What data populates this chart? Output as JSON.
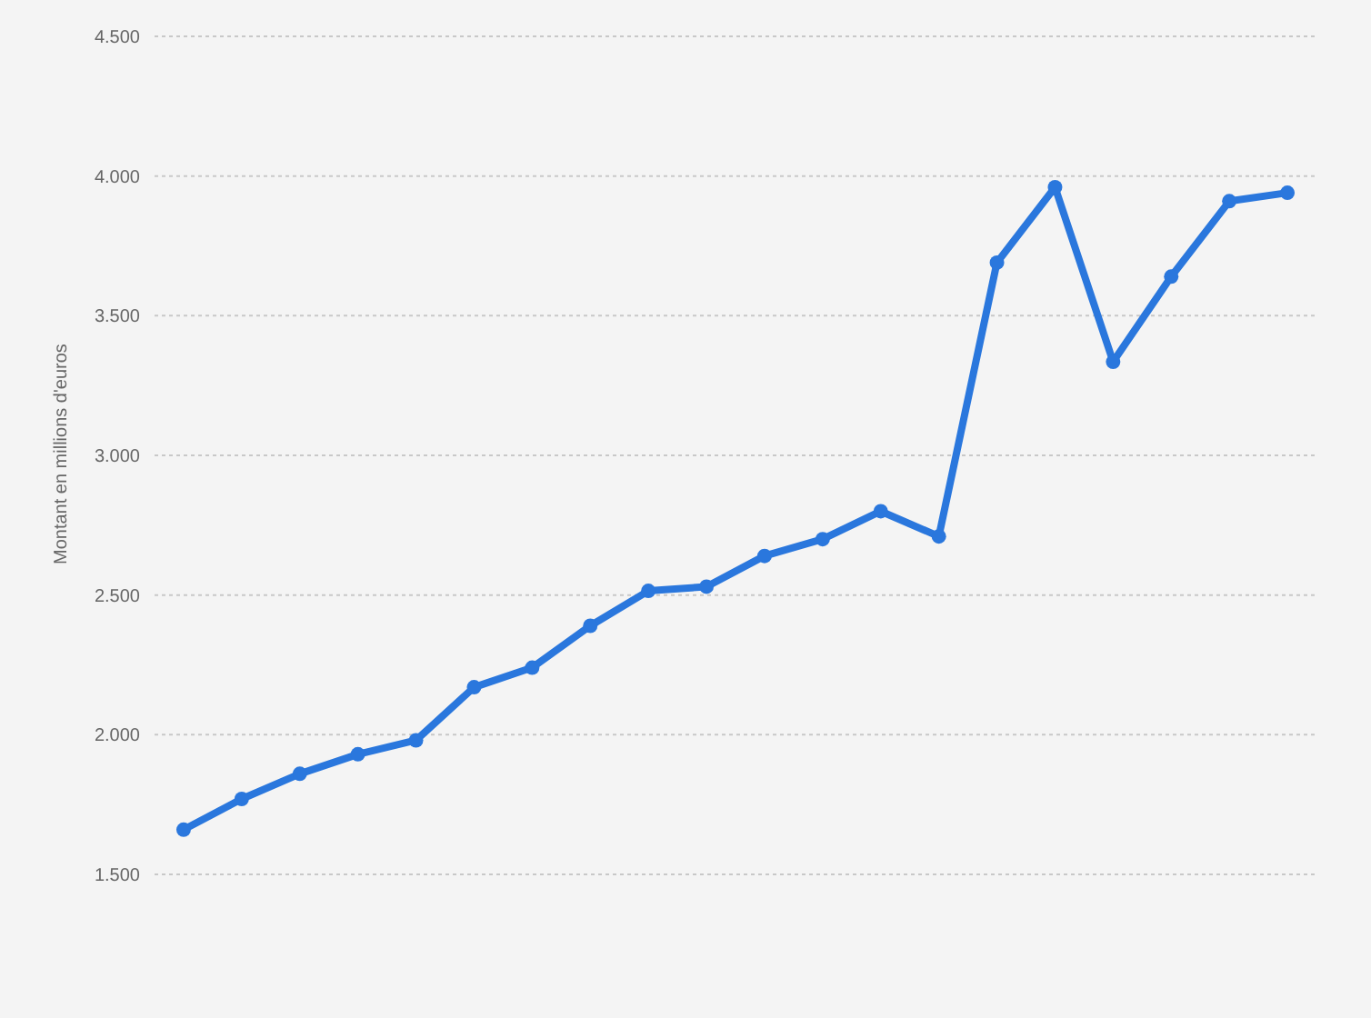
{
  "chart_data": {
    "type": "line",
    "ylabel": "Montant en millions d'euros",
    "categories": [
      null,
      null,
      null,
      null,
      null,
      null,
      null,
      null,
      null,
      null,
      null,
      null,
      null,
      null,
      null,
      null,
      null,
      null,
      null,
      null
    ],
    "series": [
      {
        "color": "#2a77dd",
        "values": [
          1660,
          1770,
          1860,
          1930,
          1980,
          2170,
          2240,
          2390,
          2515,
          2530,
          2640,
          2700,
          2800,
          2710,
          3690,
          3960,
          3335,
          3640,
          3910,
          3940
        ]
      }
    ],
    "ylim": [
      1500,
      4500
    ],
    "yticks": [
      {
        "value": 1500,
        "label": "1.500"
      },
      {
        "value": 2000,
        "label": "2.000"
      },
      {
        "value": 2500,
        "label": "2.500"
      },
      {
        "value": 3000,
        "label": "3.000"
      },
      {
        "value": 3500,
        "label": "3.500"
      },
      {
        "value": 4000,
        "label": "4.000"
      },
      {
        "value": 4500,
        "label": "4.500"
      }
    ],
    "grid": "y",
    "marker": "circle",
    "line_style": "solid",
    "legend": false,
    "tick_labels": "y"
  }
}
